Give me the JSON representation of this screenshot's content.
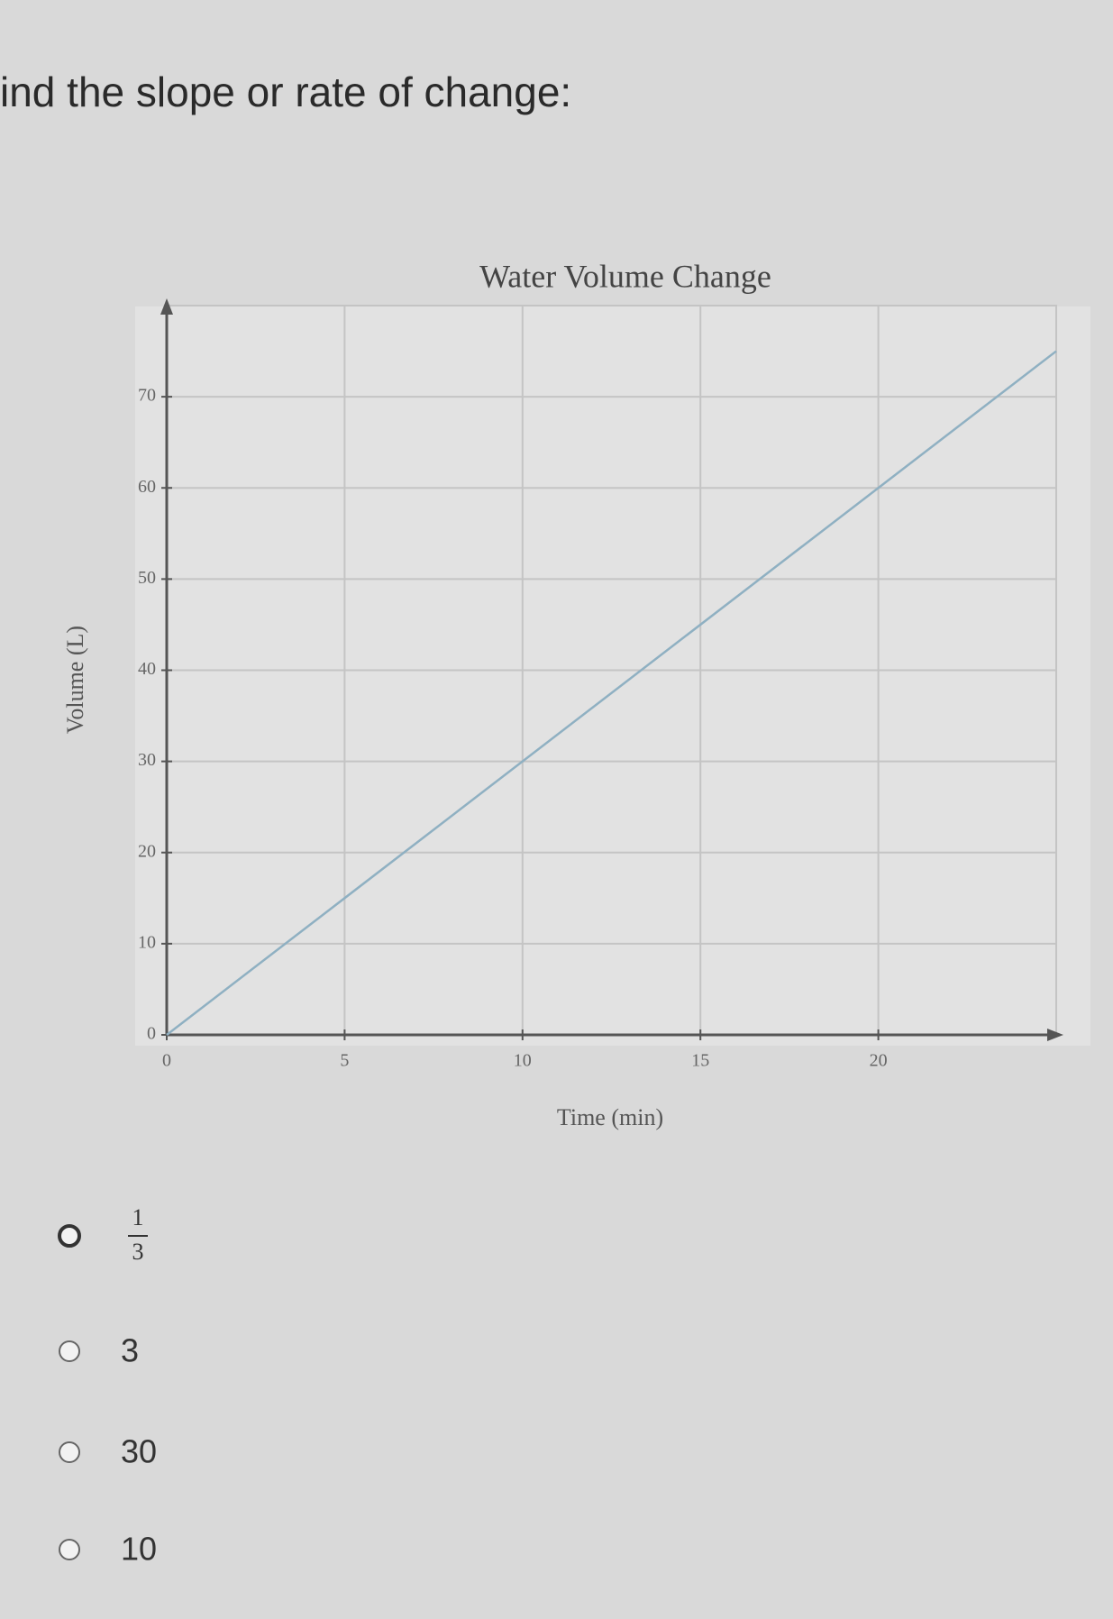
{
  "question": "ind the slope or rate of change:",
  "chart_data": {
    "type": "line",
    "title": "Water Volume Change",
    "x_label": "Time (min)",
    "y_label": "Volume (L)",
    "x": [
      0,
      25
    ],
    "series": [
      {
        "color": "#8fb0c2",
        "values": [
          0,
          75
        ]
      }
    ],
    "xlim": [
      0,
      25
    ],
    "ylim": [
      0,
      80
    ],
    "xticks": [
      0,
      5,
      10,
      15,
      20
    ],
    "yticks": [
      0,
      10,
      20,
      30,
      40,
      50,
      60,
      70
    ],
    "grid": true
  },
  "options": [
    {
      "numerator": "1",
      "denominator": "3"
    },
    "3",
    "30",
    "10"
  ]
}
